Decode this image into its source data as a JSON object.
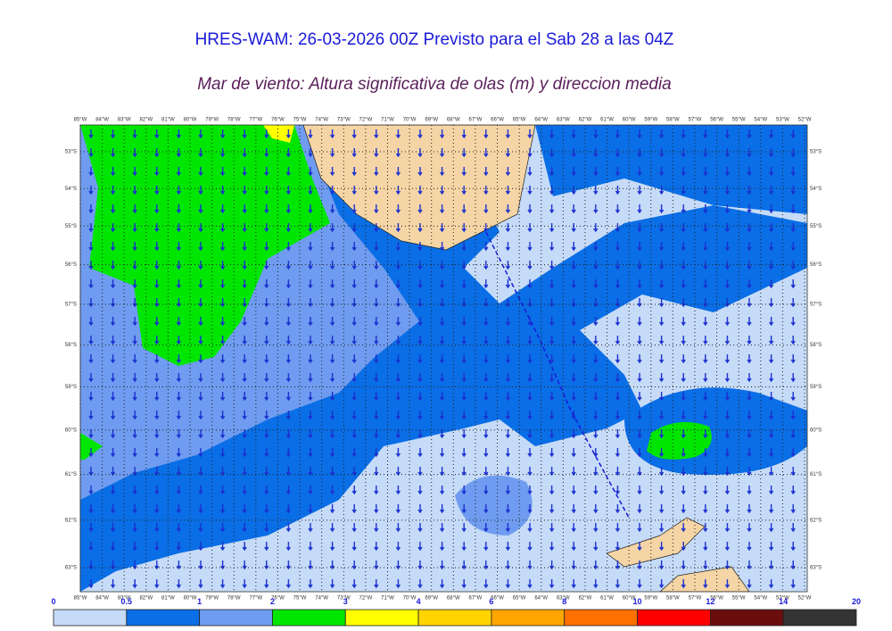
{
  "header": {
    "title": "HRES-WAM: 26-03-2026 00Z Previsto para el Sab 28 a las 04Z",
    "subtitle": "Mar de viento: Altura significativa de olas (m) y direccion media"
  },
  "map": {
    "lon_ticks": [
      {
        "value": -85,
        "label": "85°W"
      },
      {
        "value": -84,
        "label": "84°W"
      },
      {
        "value": -83,
        "label": "83°W"
      },
      {
        "value": -82,
        "label": "82°W"
      },
      {
        "value": -81,
        "label": "81°W"
      },
      {
        "value": -80,
        "label": "80°W"
      },
      {
        "value": -79,
        "label": "79°W"
      },
      {
        "value": -78,
        "label": "78°W"
      },
      {
        "value": -77,
        "label": "77°W"
      },
      {
        "value": -76,
        "label": "76°W"
      },
      {
        "value": -75,
        "label": "75°W"
      },
      {
        "value": -74,
        "label": "74°W"
      },
      {
        "value": -73,
        "label": "73°W"
      },
      {
        "value": -72,
        "label": "72°W"
      },
      {
        "value": -71,
        "label": "71°W"
      },
      {
        "value": -70,
        "label": "70°W"
      },
      {
        "value": -69,
        "label": "69°W"
      },
      {
        "value": -68,
        "label": "68°W"
      },
      {
        "value": -67,
        "label": "67°W"
      },
      {
        "value": -66,
        "label": "66°W"
      },
      {
        "value": -65,
        "label": "65°W"
      },
      {
        "value": -64,
        "label": "64°W"
      },
      {
        "value": -63,
        "label": "63°W"
      },
      {
        "value": -62,
        "label": "62°W"
      },
      {
        "value": -61,
        "label": "61°W"
      },
      {
        "value": -60,
        "label": "60°W"
      },
      {
        "value": -59,
        "label": "59°W"
      },
      {
        "value": -58,
        "label": "58°W"
      },
      {
        "value": -57,
        "label": "57°W"
      },
      {
        "value": -56,
        "label": "56°W"
      },
      {
        "value": -55,
        "label": "55°W"
      },
      {
        "value": -54,
        "label": "54°W"
      },
      {
        "value": -53,
        "label": "53°W"
      },
      {
        "value": -52,
        "label": "52°W"
      }
    ],
    "lat_ticks": [
      {
        "value": -53,
        "label": "53°S"
      },
      {
        "value": -54,
        "label": "54°S"
      },
      {
        "value": -55,
        "label": "55°S"
      },
      {
        "value": -56,
        "label": "56°S"
      },
      {
        "value": -57,
        "label": "57°S"
      },
      {
        "value": -58,
        "label": "58°S"
      },
      {
        "value": -59,
        "label": "59°S"
      },
      {
        "value": -60,
        "label": "60°S"
      },
      {
        "value": -61,
        "label": "61°S"
      },
      {
        "value": -62,
        "label": "62°S"
      },
      {
        "value": -63,
        "label": "63°S"
      }
    ]
  },
  "colorbar": {
    "ticks": [
      0,
      0.5,
      1,
      2,
      3,
      4,
      6,
      8,
      10,
      12,
      14,
      20
    ],
    "colors": [
      "#c6dbf7",
      "#0a6ee6",
      "#6f9cf0",
      "#00e600",
      "#ffff00",
      "#ffd400",
      "#ffa500",
      "#ff7000",
      "#ff0000",
      "#6b0d0d",
      "#333333"
    ]
  }
}
